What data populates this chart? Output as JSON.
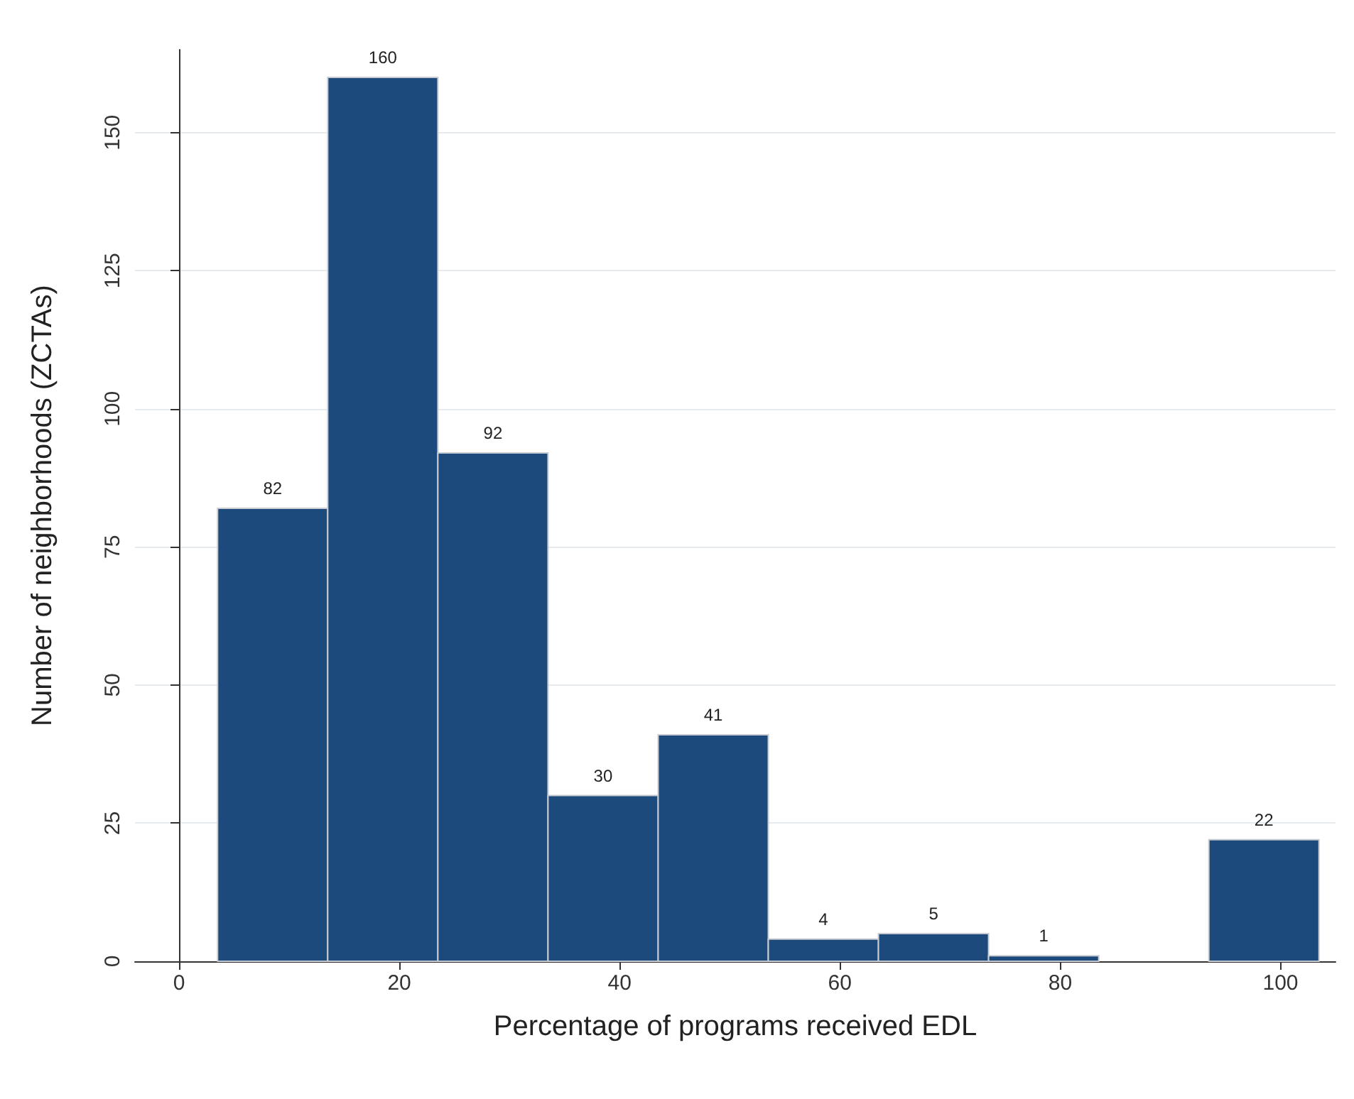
{
  "chart_data": {
    "type": "histogram",
    "xlabel": "Percentage of programs received EDL",
    "ylabel": "Number of neighborhoods (ZCTAs)",
    "bins": [
      3.5,
      13.5,
      23.5,
      33.5,
      43.5,
      53.5,
      63.5,
      73.5,
      83.5,
      93.5,
      103.5
    ],
    "values": [
      82,
      160,
      92,
      30,
      41,
      4,
      5,
      1,
      0,
      22
    ],
    "value_labels": [
      "82",
      "160",
      "92",
      "30",
      "41",
      "4",
      "5",
      "1",
      null,
      "22"
    ],
    "color": "#1c4a7c",
    "xlim": [
      -4,
      105
    ],
    "xticks": [
      0,
      20,
      40,
      60,
      80,
      100
    ],
    "ylim": [
      0,
      165
    ],
    "yticks": [
      0,
      25,
      50,
      75,
      100,
      125,
      150
    ],
    "grid": "y"
  }
}
